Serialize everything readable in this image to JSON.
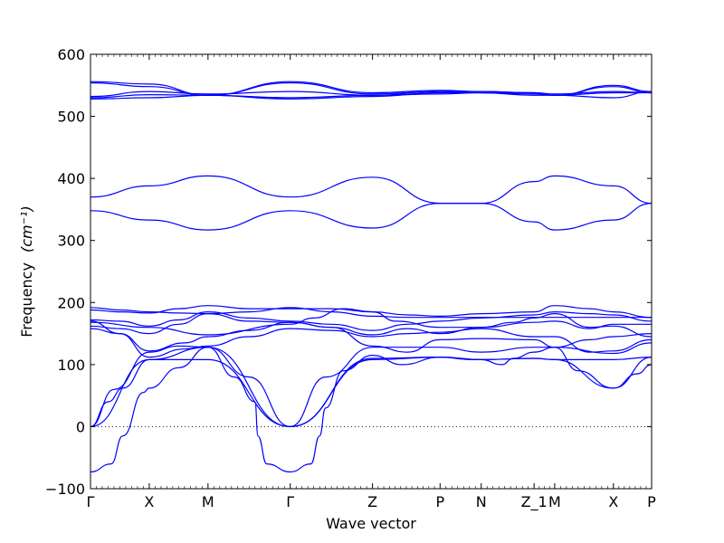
{
  "chart_data": {
    "type": "line",
    "xlabel": "Wave vector",
    "ylabel": "Frequency",
    "ylabel_unit": "(cm⁻¹)",
    "ylim": [
      -100,
      600
    ],
    "yticks": [
      -100,
      0,
      100,
      200,
      300,
      400,
      500,
      600
    ],
    "xlim": [
      0,
      9.55
    ],
    "high_symmetry_points": [
      {
        "label": "Γ",
        "x": 0
      },
      {
        "label": "X",
        "x": 1
      },
      {
        "label": "M",
        "x": 2
      },
      {
        "label": "Γ",
        "x": 3.4
      },
      {
        "label": "Z",
        "x": 4.8
      },
      {
        "label": "P",
        "x": 5.95
      },
      {
        "label": "N",
        "x": 6.65
      },
      {
        "label": "Z_1",
        "x": 7.55
      },
      {
        "label": "M",
        "x": 7.9
      },
      {
        "label": "X",
        "x": 8.9
      },
      {
        "label": "P",
        "x": 9.55
      }
    ],
    "zero_line": {
      "y": 0,
      "style": "dotted"
    },
    "series": [
      {
        "x": [
          0,
          0.3,
          0.55,
          1.0,
          2.0,
          3.4,
          4.8,
          5.95,
          6.65,
          7.55,
          7.9,
          8.9,
          9.55
        ],
        "y": [
          0,
          40,
          62,
          108,
          108,
          0,
          110,
          112,
          108,
          110,
          108,
          62,
          112
        ]
      },
      {
        "x": [
          0,
          0.4,
          1.0,
          1.5,
          2.0,
          2.7,
          3.4,
          4.0,
          4.8,
          5.95,
          6.65,
          7.55,
          7.9,
          8.9,
          9.55
        ],
        "y": [
          0,
          60,
          120,
          130,
          128,
          80,
          0,
          80,
          128,
          128,
          120,
          128,
          128,
          118,
          135
        ]
      },
      {
        "x": [
          0,
          1.0,
          2.0,
          3.4,
          4.8,
          5.95,
          6.65,
          7.55,
          7.9,
          8.9,
          9.55
        ],
        "y": [
          0,
          108,
          128,
          0,
          108,
          112,
          108,
          110,
          108,
          108,
          112
        ]
      },
      {
        "x": [
          0,
          0.35,
          0.55,
          0.9,
          1.0,
          1.5,
          2.0,
          2.45,
          2.8,
          2.85,
          3.0,
          3.4,
          3.75,
          3.9,
          4.0,
          4.3,
          4.8,
          5.3,
          5.95,
          6.5,
          6.65,
          7.0,
          7.2,
          7.55,
          7.9,
          8.3,
          8.9,
          9.3,
          9.55
        ],
        "y": [
          -73,
          -60,
          -15,
          55,
          62,
          95,
          128,
          80,
          40,
          -15,
          -60,
          -73,
          -60,
          -15,
          30,
          90,
          115,
          100,
          112,
          108,
          108,
          100,
          110,
          120,
          128,
          90,
          62,
          85,
          100
        ]
      },
      {
        "x": [
          0,
          0.5,
          1.0,
          1.6,
          2.0,
          2.7,
          3.4,
          4.1,
          4.8,
          5.4,
          5.95,
          6.65,
          7.55,
          7.9,
          8.5,
          8.9,
          9.55
        ],
        "y": [
          170,
          150,
          122,
          135,
          145,
          155,
          168,
          160,
          130,
          120,
          140,
          142,
          140,
          128,
          140,
          145,
          150
        ]
      },
      {
        "x": [
          0,
          0.5,
          1.0,
          1.6,
          2.0,
          2.7,
          3.4,
          4.1,
          4.8,
          5.4,
          5.95,
          6.65,
          7.55,
          7.9,
          8.5,
          8.9,
          9.55
        ],
        "y": [
          158,
          150,
          112,
          125,
          130,
          145,
          158,
          155,
          145,
          150,
          152,
          158,
          145,
          145,
          120,
          122,
          140
        ]
      },
      {
        "x": [
          0,
          0.5,
          1.0,
          1.5,
          2.0,
          2.7,
          3.4,
          4.1,
          4.8,
          5.4,
          5.95,
          6.65,
          7.2,
          7.55,
          7.9,
          8.5,
          8.9,
          9.55
        ],
        "y": [
          162,
          158,
          150,
          165,
          182,
          170,
          168,
          160,
          148,
          158,
          150,
          160,
          168,
          175,
          182,
          160,
          162,
          145
        ]
      },
      {
        "x": [
          0,
          0.5,
          1.0,
          1.5,
          2.0,
          2.7,
          3.4,
          4.1,
          4.8,
          5.4,
          5.95,
          6.65,
          7.55,
          7.9,
          8.5,
          8.9,
          9.55
        ],
        "y": [
          172,
          170,
          162,
          172,
          185,
          175,
          170,
          165,
          155,
          165,
          170,
          175,
          180,
          185,
          182,
          180,
          170
        ]
      },
      {
        "x": [
          0,
          0.5,
          1.0,
          1.5,
          2.0,
          2.7,
          3.4,
          4.1,
          4.8,
          5.4,
          5.95,
          6.65,
          7.55,
          7.9,
          8.5,
          8.9,
          9.55
        ],
        "y": [
          188,
          185,
          183,
          190,
          195,
          190,
          190,
          190,
          185,
          180,
          178,
          182,
          185,
          195,
          190,
          185,
          176
        ]
      },
      {
        "x": [
          0,
          0.5,
          1.0,
          1.5,
          2.0,
          2.7,
          3.4,
          4.1,
          4.8,
          5.4,
          5.95,
          6.65,
          7.55,
          7.9,
          8.5,
          8.9,
          9.55
        ],
        "y": [
          192,
          188,
          185,
          183,
          182,
          185,
          192,
          185,
          178,
          176,
          176,
          176,
          176,
          176,
          176,
          176,
          176
        ]
      },
      {
        "x": [
          0,
          1.0,
          2.0,
          3.4,
          3.8,
          4.3,
          4.8,
          5.2,
          5.95,
          6.65,
          7.55,
          7.9,
          8.5,
          8.9,
          9.55
        ],
        "y": [
          168,
          160,
          148,
          165,
          175,
          190,
          185,
          170,
          160,
          160,
          168,
          170,
          158,
          165,
          165
        ]
      },
      {
        "x": [
          0,
          1.0,
          2.0,
          3.4,
          4.8,
          5.95,
          6.65,
          7.55,
          7.9,
          8.9,
          9.55
        ],
        "y": [
          348,
          333,
          317,
          348,
          320,
          360,
          360,
          330,
          317,
          333,
          360
        ]
      },
      {
        "x": [
          0,
          1.0,
          2.0,
          3.4,
          4.8,
          5.95,
          6.65,
          7.55,
          7.9,
          8.9,
          9.55
        ],
        "y": [
          370,
          388,
          404,
          370,
          402,
          360,
          360,
          395,
          404,
          388,
          360
        ]
      },
      {
        "x": [
          0,
          1.0,
          2.0,
          3.4,
          4.8,
          5.95,
          6.65,
          7.55,
          7.9,
          8.9,
          9.55
        ],
        "y": [
          528,
          530,
          534,
          528,
          532,
          538,
          538,
          536,
          534,
          530,
          540
        ]
      },
      {
        "x": [
          0,
          1.0,
          2.0,
          3.4,
          4.8,
          5.95,
          6.65,
          7.55,
          7.9,
          8.9,
          9.55
        ],
        "y": [
          530,
          535,
          534,
          530,
          534,
          536,
          538,
          534,
          534,
          538,
          538
        ]
      },
      {
        "x": [
          0,
          1.0,
          2.0,
          3.4,
          4.8,
          5.95,
          6.65,
          7.55,
          7.9,
          8.9,
          9.55
        ],
        "y": [
          532,
          540,
          536,
          540,
          534,
          540,
          540,
          538,
          536,
          540,
          538
        ]
      },
      {
        "x": [
          0,
          1.0,
          2.0,
          3.4,
          4.8,
          5.95,
          6.65,
          7.55,
          7.9,
          8.9,
          9.55
        ],
        "y": [
          554,
          548,
          534,
          554,
          536,
          540,
          538,
          538,
          534,
          548,
          538
        ]
      },
      {
        "x": [
          0,
          1.0,
          2.0,
          3.4,
          4.8,
          5.95,
          6.65,
          7.55,
          7.9,
          8.9,
          9.55
        ],
        "y": [
          556,
          552,
          534,
          556,
          538,
          542,
          540,
          538,
          534,
          550,
          540
        ]
      }
    ],
    "line_color": "#0000ff",
    "grid": false,
    "legend": "none"
  }
}
